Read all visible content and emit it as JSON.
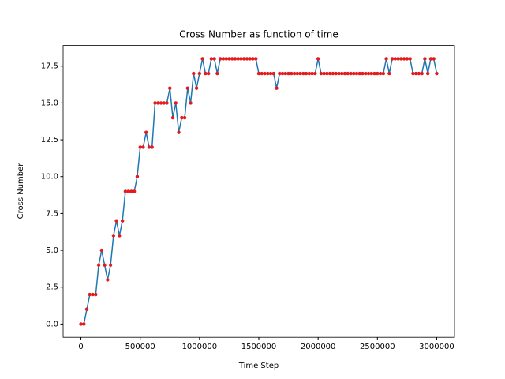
{
  "chart_data": {
    "type": "line",
    "title": "Cross Number as function of time",
    "xlabel": "Time Step",
    "ylabel": "Cross Number",
    "x": [
      0,
      25000,
      50000,
      75000,
      100000,
      125000,
      150000,
      175000,
      200000,
      225000,
      250000,
      275000,
      300000,
      325000,
      350000,
      375000,
      400000,
      425000,
      450000,
      475000,
      500000,
      525000,
      550000,
      575000,
      600000,
      625000,
      650000,
      675000,
      700000,
      725000,
      750000,
      775000,
      800000,
      825000,
      850000,
      875000,
      900000,
      925000,
      950000,
      975000,
      1000000,
      1025000,
      1050000,
      1075000,
      1100000,
      1125000,
      1150000,
      1175000,
      1200000,
      1225000,
      1250000,
      1275000,
      1300000,
      1325000,
      1350000,
      1375000,
      1400000,
      1425000,
      1450000,
      1475000,
      1500000,
      1525000,
      1550000,
      1575000,
      1600000,
      1625000,
      1650000,
      1675000,
      1700000,
      1725000,
      1750000,
      1775000,
      1800000,
      1825000,
      1850000,
      1875000,
      1900000,
      1925000,
      1950000,
      1975000,
      2000000,
      2025000,
      2050000,
      2075000,
      2100000,
      2125000,
      2150000,
      2175000,
      2200000,
      2225000,
      2250000,
      2275000,
      2300000,
      2325000,
      2350000,
      2375000,
      2400000,
      2425000,
      2450000,
      2475000,
      2500000,
      2525000,
      2550000,
      2575000,
      2600000,
      2625000,
      2650000,
      2675000,
      2700000,
      2725000,
      2750000,
      2775000,
      2800000,
      2825000,
      2850000,
      2875000,
      2900000,
      2925000,
      2950000,
      2975000,
      3000000
    ],
    "series": [
      {
        "color": "#1f77b4",
        "marker_color": "#e41a1c",
        "values": [
          0,
          0,
          1,
          2,
          2,
          2,
          4,
          5,
          4,
          3,
          4,
          6,
          7,
          6,
          7,
          9,
          9,
          9,
          9,
          10,
          12,
          12,
          13,
          12,
          12,
          15,
          15,
          15,
          15,
          15,
          16,
          14,
          15,
          13,
          14,
          14,
          16,
          15,
          17,
          16,
          17,
          18,
          17,
          17,
          18,
          18,
          17,
          18,
          18,
          18,
          18,
          18,
          18,
          18,
          18,
          18,
          18,
          18,
          18,
          18,
          17,
          17,
          17,
          17,
          17,
          17,
          16,
          17,
          17,
          17,
          17,
          17,
          17,
          17,
          17,
          17,
          17,
          17,
          17,
          17,
          18,
          17,
          17,
          17,
          17,
          17,
          17,
          17,
          17,
          17,
          17,
          17,
          17,
          17,
          17,
          17,
          17,
          17,
          17,
          17,
          17,
          17,
          17,
          18,
          17,
          18,
          18,
          18,
          18,
          18,
          18,
          18,
          17,
          17,
          17,
          17,
          18,
          17,
          18,
          18,
          17
        ]
      }
    ],
    "xlim": [
      -150000,
      3150000
    ],
    "xticks": [
      0,
      500000,
      1000000,
      1500000,
      2000000,
      2500000,
      3000000
    ],
    "ylim": [
      -0.9,
      18.9
    ],
    "yticks": [
      {
        "value": 0,
        "label": "0.0"
      },
      {
        "value": 2.5,
        "label": "2.5"
      },
      {
        "value": 5,
        "label": "5.0"
      },
      {
        "value": 7.5,
        "label": "7.5"
      },
      {
        "value": 10,
        "label": "10.0"
      },
      {
        "value": 12.5,
        "label": "12.5"
      },
      {
        "value": 15,
        "label": "15.0"
      },
      {
        "value": 17.5,
        "label": "17.5"
      }
    ]
  }
}
